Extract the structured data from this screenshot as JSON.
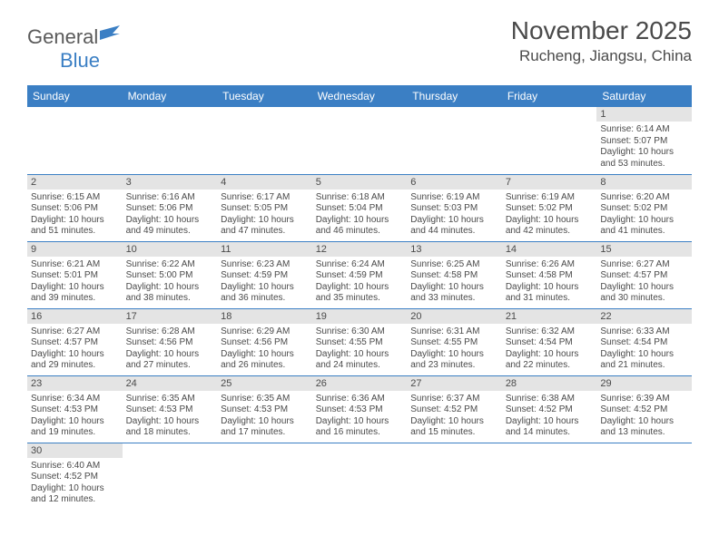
{
  "logo": {
    "text_general": "General",
    "text_blue": "Blue"
  },
  "title": "November 2025",
  "location": "Rucheng, Jiangsu, China",
  "colors": {
    "header_bg": "#3b7fc4",
    "daynum_bg": "#e4e4e4",
    "border": "#3b7fc4",
    "text": "#4a4a4a"
  },
  "weekdays": [
    "Sunday",
    "Monday",
    "Tuesday",
    "Wednesday",
    "Thursday",
    "Friday",
    "Saturday"
  ],
  "weeks": [
    [
      null,
      null,
      null,
      null,
      null,
      null,
      {
        "n": "1",
        "sr": "Sunrise: 6:14 AM",
        "ss": "Sunset: 5:07 PM",
        "dl": "Daylight: 10 hours and 53 minutes."
      }
    ],
    [
      {
        "n": "2",
        "sr": "Sunrise: 6:15 AM",
        "ss": "Sunset: 5:06 PM",
        "dl": "Daylight: 10 hours and 51 minutes."
      },
      {
        "n": "3",
        "sr": "Sunrise: 6:16 AM",
        "ss": "Sunset: 5:06 PM",
        "dl": "Daylight: 10 hours and 49 minutes."
      },
      {
        "n": "4",
        "sr": "Sunrise: 6:17 AM",
        "ss": "Sunset: 5:05 PM",
        "dl": "Daylight: 10 hours and 47 minutes."
      },
      {
        "n": "5",
        "sr": "Sunrise: 6:18 AM",
        "ss": "Sunset: 5:04 PM",
        "dl": "Daylight: 10 hours and 46 minutes."
      },
      {
        "n": "6",
        "sr": "Sunrise: 6:19 AM",
        "ss": "Sunset: 5:03 PM",
        "dl": "Daylight: 10 hours and 44 minutes."
      },
      {
        "n": "7",
        "sr": "Sunrise: 6:19 AM",
        "ss": "Sunset: 5:02 PM",
        "dl": "Daylight: 10 hours and 42 minutes."
      },
      {
        "n": "8",
        "sr": "Sunrise: 6:20 AM",
        "ss": "Sunset: 5:02 PM",
        "dl": "Daylight: 10 hours and 41 minutes."
      }
    ],
    [
      {
        "n": "9",
        "sr": "Sunrise: 6:21 AM",
        "ss": "Sunset: 5:01 PM",
        "dl": "Daylight: 10 hours and 39 minutes."
      },
      {
        "n": "10",
        "sr": "Sunrise: 6:22 AM",
        "ss": "Sunset: 5:00 PM",
        "dl": "Daylight: 10 hours and 38 minutes."
      },
      {
        "n": "11",
        "sr": "Sunrise: 6:23 AM",
        "ss": "Sunset: 4:59 PM",
        "dl": "Daylight: 10 hours and 36 minutes."
      },
      {
        "n": "12",
        "sr": "Sunrise: 6:24 AM",
        "ss": "Sunset: 4:59 PM",
        "dl": "Daylight: 10 hours and 35 minutes."
      },
      {
        "n": "13",
        "sr": "Sunrise: 6:25 AM",
        "ss": "Sunset: 4:58 PM",
        "dl": "Daylight: 10 hours and 33 minutes."
      },
      {
        "n": "14",
        "sr": "Sunrise: 6:26 AM",
        "ss": "Sunset: 4:58 PM",
        "dl": "Daylight: 10 hours and 31 minutes."
      },
      {
        "n": "15",
        "sr": "Sunrise: 6:27 AM",
        "ss": "Sunset: 4:57 PM",
        "dl": "Daylight: 10 hours and 30 minutes."
      }
    ],
    [
      {
        "n": "16",
        "sr": "Sunrise: 6:27 AM",
        "ss": "Sunset: 4:57 PM",
        "dl": "Daylight: 10 hours and 29 minutes."
      },
      {
        "n": "17",
        "sr": "Sunrise: 6:28 AM",
        "ss": "Sunset: 4:56 PM",
        "dl": "Daylight: 10 hours and 27 minutes."
      },
      {
        "n": "18",
        "sr": "Sunrise: 6:29 AM",
        "ss": "Sunset: 4:56 PM",
        "dl": "Daylight: 10 hours and 26 minutes."
      },
      {
        "n": "19",
        "sr": "Sunrise: 6:30 AM",
        "ss": "Sunset: 4:55 PM",
        "dl": "Daylight: 10 hours and 24 minutes."
      },
      {
        "n": "20",
        "sr": "Sunrise: 6:31 AM",
        "ss": "Sunset: 4:55 PM",
        "dl": "Daylight: 10 hours and 23 minutes."
      },
      {
        "n": "21",
        "sr": "Sunrise: 6:32 AM",
        "ss": "Sunset: 4:54 PM",
        "dl": "Daylight: 10 hours and 22 minutes."
      },
      {
        "n": "22",
        "sr": "Sunrise: 6:33 AM",
        "ss": "Sunset: 4:54 PM",
        "dl": "Daylight: 10 hours and 21 minutes."
      }
    ],
    [
      {
        "n": "23",
        "sr": "Sunrise: 6:34 AM",
        "ss": "Sunset: 4:53 PM",
        "dl": "Daylight: 10 hours and 19 minutes."
      },
      {
        "n": "24",
        "sr": "Sunrise: 6:35 AM",
        "ss": "Sunset: 4:53 PM",
        "dl": "Daylight: 10 hours and 18 minutes."
      },
      {
        "n": "25",
        "sr": "Sunrise: 6:35 AM",
        "ss": "Sunset: 4:53 PM",
        "dl": "Daylight: 10 hours and 17 minutes."
      },
      {
        "n": "26",
        "sr": "Sunrise: 6:36 AM",
        "ss": "Sunset: 4:53 PM",
        "dl": "Daylight: 10 hours and 16 minutes."
      },
      {
        "n": "27",
        "sr": "Sunrise: 6:37 AM",
        "ss": "Sunset: 4:52 PM",
        "dl": "Daylight: 10 hours and 15 minutes."
      },
      {
        "n": "28",
        "sr": "Sunrise: 6:38 AM",
        "ss": "Sunset: 4:52 PM",
        "dl": "Daylight: 10 hours and 14 minutes."
      },
      {
        "n": "29",
        "sr": "Sunrise: 6:39 AM",
        "ss": "Sunset: 4:52 PM",
        "dl": "Daylight: 10 hours and 13 minutes."
      }
    ],
    [
      {
        "n": "30",
        "sr": "Sunrise: 6:40 AM",
        "ss": "Sunset: 4:52 PM",
        "dl": "Daylight: 10 hours and 12 minutes."
      },
      null,
      null,
      null,
      null,
      null,
      null
    ]
  ]
}
